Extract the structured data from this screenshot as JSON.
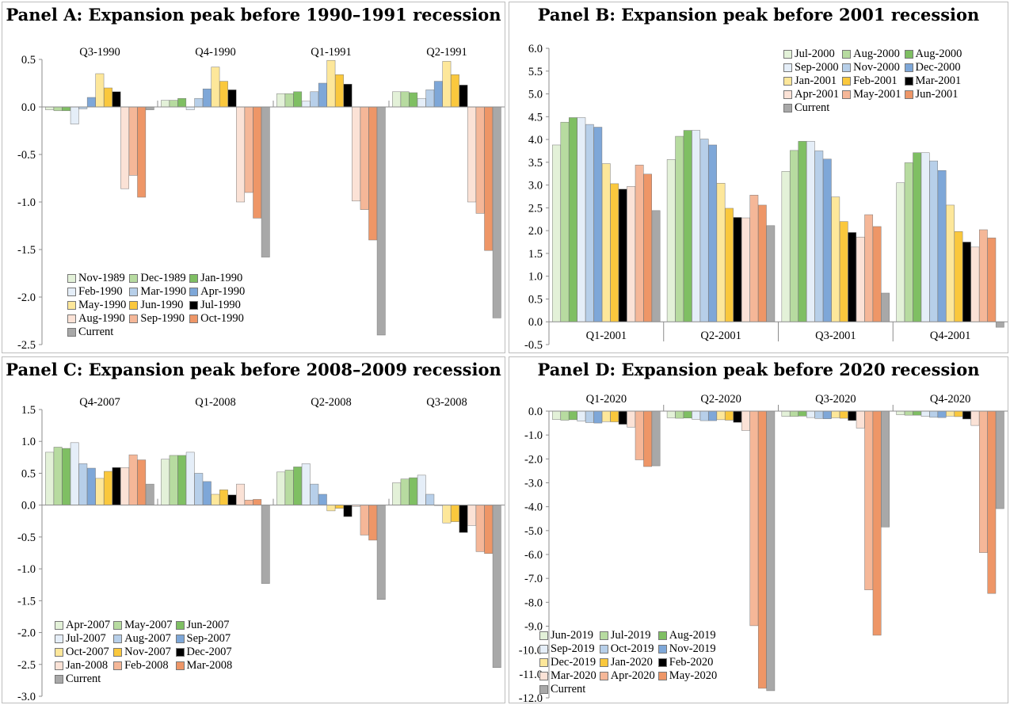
{
  "colors": {
    "pale_green": "#e3f1d8",
    "light_green": "#b7dba0",
    "green": "#7fbf63",
    "pale_blue": "#e5eef8",
    "light_blue": "#b7cfe9",
    "blue": "#7ea7d8",
    "light_yellow": "#fde79a",
    "yellow": "#fac83d",
    "black": "#000000",
    "pale_salmon": "#fbe2d6",
    "salmon": "#f5b798",
    "orange": "#ee9667",
    "gray": "#a8a8a8"
  },
  "chart_data": [
    {
      "type": "bar",
      "title": "Panel A: Expansion peak before 1990–1991 recession",
      "categories": [
        "Q3-1990",
        "Q4-1990",
        "Q1-1991",
        "Q2-1991"
      ],
      "category_position": "top",
      "ylim": [
        -2.5,
        0.5
      ],
      "ystep": 0.5,
      "ydecimals": 1,
      "grid": false,
      "legend_placement": "bottom-left",
      "legend_columns": 3,
      "series": [
        {
          "name": "Nov-1989",
          "color": "pale_green",
          "values": [
            -0.03,
            0.07,
            0.14,
            0.16
          ]
        },
        {
          "name": "Dec-1989",
          "color": "light_green",
          "values": [
            -0.04,
            0.07,
            0.14,
            0.16
          ]
        },
        {
          "name": "Jan-1990",
          "color": "green",
          "values": [
            -0.04,
            0.09,
            0.16,
            0.15
          ]
        },
        {
          "name": "Feb-1990",
          "color": "pale_blue",
          "values": [
            -0.18,
            -0.03,
            0.06,
            0.09
          ]
        },
        {
          "name": "Mar-1990",
          "color": "light_blue",
          "values": [
            -0.02,
            0.09,
            0.16,
            0.18
          ]
        },
        {
          "name": "Apr-1990",
          "color": "blue",
          "values": [
            0.1,
            0.19,
            0.25,
            0.27
          ]
        },
        {
          "name": "May-1990",
          "color": "light_yellow",
          "values": [
            0.35,
            0.42,
            0.49,
            0.48
          ]
        },
        {
          "name": "Jun-1990",
          "color": "yellow",
          "values": [
            0.2,
            0.27,
            0.34,
            0.34
          ]
        },
        {
          "name": "Jul-1990",
          "color": "black",
          "values": [
            0.16,
            0.18,
            0.24,
            0.23
          ]
        },
        {
          "name": "Aug-1990",
          "color": "pale_salmon",
          "values": [
            -0.86,
            -1.0,
            -0.99,
            -1.0
          ]
        },
        {
          "name": "Sep-1990",
          "color": "salmon",
          "values": [
            -0.72,
            -0.9,
            -1.08,
            -1.12
          ]
        },
        {
          "name": "Oct-1990",
          "color": "orange",
          "values": [
            -0.95,
            -1.17,
            -1.4,
            -1.51
          ]
        },
        {
          "name": "Current",
          "color": "gray",
          "values": [
            -0.03,
            -1.58,
            -2.4,
            -2.22
          ]
        }
      ]
    },
    {
      "type": "bar",
      "title": "Panel B: Expansion peak before 2001 recession",
      "categories": [
        "Q1-2001",
        "Q2-2001",
        "Q3-2001",
        "Q4-2001"
      ],
      "category_position": "bottom",
      "ylim": [
        -0.5,
        6.0
      ],
      "ystep": 0.5,
      "ydecimals": 1,
      "grid": false,
      "legend_placement": "top-right",
      "legend_columns": 3,
      "series": [
        {
          "name": "Jul-2000",
          "color": "pale_green",
          "values": [
            3.88,
            3.56,
            3.3,
            3.05
          ]
        },
        {
          "name": "Aug-2000",
          "color": "light_green",
          "values": [
            4.38,
            4.07,
            3.76,
            3.49
          ]
        },
        {
          "name": "Aug-2000",
          "color": "green",
          "values": [
            4.48,
            4.2,
            3.96,
            3.71
          ]
        },
        {
          "name": "Sep-2000",
          "color": "pale_blue",
          "values": [
            4.48,
            4.2,
            3.96,
            3.71
          ]
        },
        {
          "name": "Nov-2000",
          "color": "light_blue",
          "values": [
            4.33,
            4.01,
            3.75,
            3.53
          ]
        },
        {
          "name": "Dec-2000",
          "color": "blue",
          "values": [
            4.27,
            3.88,
            3.57,
            3.32
          ]
        },
        {
          "name": "Jan-2001",
          "color": "light_yellow",
          "values": [
            3.47,
            3.04,
            2.74,
            2.56
          ]
        },
        {
          "name": "Feb-2001",
          "color": "yellow",
          "values": [
            3.03,
            2.49,
            2.2,
            1.98
          ]
        },
        {
          "name": "Mar-2001",
          "color": "black",
          "values": [
            2.91,
            2.29,
            1.96,
            1.75
          ]
        },
        {
          "name": "Apr-2001",
          "color": "pale_salmon",
          "values": [
            2.97,
            2.28,
            1.86,
            1.64
          ]
        },
        {
          "name": "May-2001",
          "color": "salmon",
          "values": [
            3.44,
            2.78,
            2.35,
            2.02
          ]
        },
        {
          "name": "Jun-2001",
          "color": "orange",
          "values": [
            3.24,
            2.56,
            2.09,
            1.84
          ]
        },
        {
          "name": "Current",
          "color": "gray",
          "values": [
            2.44,
            2.11,
            0.63,
            -0.12
          ]
        }
      ]
    },
    {
      "type": "bar",
      "title": "Panel C: Expansion peak before 2008–2009 recession",
      "categories": [
        "Q4-2007",
        "Q1-2008",
        "Q2-2008",
        "Q3-2008"
      ],
      "category_position": "top",
      "ylim": [
        -3.0,
        1.5
      ],
      "ystep": 0.5,
      "ydecimals": 1,
      "grid": false,
      "legend_placement": "bottom-left",
      "legend_columns": 3,
      "series": [
        {
          "name": "Apr-2007",
          "color": "pale_green",
          "values": [
            0.83,
            0.72,
            0.52,
            0.35
          ]
        },
        {
          "name": "May-2007",
          "color": "light_green",
          "values": [
            0.91,
            0.78,
            0.55,
            0.41
          ]
        },
        {
          "name": "Jun-2007",
          "color": "green",
          "values": [
            0.89,
            0.78,
            0.6,
            0.43
          ]
        },
        {
          "name": "Jul-2007",
          "color": "pale_blue",
          "values": [
            0.98,
            0.83,
            0.65,
            0.47
          ]
        },
        {
          "name": "Aug-2007",
          "color": "light_blue",
          "values": [
            0.65,
            0.5,
            0.33,
            0.17
          ]
        },
        {
          "name": "Sep-2007",
          "color": "blue",
          "values": [
            0.58,
            0.37,
            0.17,
            0.0
          ]
        },
        {
          "name": "Oct-2007",
          "color": "light_yellow",
          "values": [
            0.42,
            0.17,
            -0.09,
            -0.28
          ]
        },
        {
          "name": "Nov-2007",
          "color": "yellow",
          "values": [
            0.53,
            0.24,
            -0.05,
            -0.26
          ]
        },
        {
          "name": "Dec-2007",
          "color": "black",
          "values": [
            0.59,
            0.16,
            -0.18,
            -0.43
          ]
        },
        {
          "name": "Jan-2008",
          "color": "pale_salmon",
          "values": [
            0.59,
            0.33,
            -0.02,
            -0.32
          ]
        },
        {
          "name": "Feb-2008",
          "color": "salmon",
          "values": [
            0.79,
            0.08,
            -0.47,
            -0.73
          ]
        },
        {
          "name": "Mar-2008",
          "color": "orange",
          "values": [
            0.71,
            0.09,
            -0.55,
            -0.76
          ]
        },
        {
          "name": "Current",
          "color": "gray",
          "values": [
            0.33,
            -1.23,
            -1.48,
            -2.55
          ]
        }
      ]
    },
    {
      "type": "bar",
      "title": "Panel D: Expansion peak before 2020 recession",
      "categories": [
        "Q1-2020",
        "Q2-2020",
        "Q3-2020",
        "Q4-2020"
      ],
      "category_position": "top",
      "ylim": [
        -12.0,
        0.0
      ],
      "ystep": 1.0,
      "ydecimals": 1,
      "grid": false,
      "legend_placement": "bottom-left",
      "legend_columns": 3,
      "series": [
        {
          "name": "Jun-2019",
          "color": "pale_green",
          "values": [
            -0.35,
            -0.28,
            -0.22,
            -0.15
          ]
        },
        {
          "name": "Jul-2019",
          "color": "light_green",
          "values": [
            -0.38,
            -0.3,
            -0.22,
            -0.17
          ]
        },
        {
          "name": "Aug-2019",
          "color": "green",
          "values": [
            -0.36,
            -0.29,
            -0.21,
            -0.17
          ]
        },
        {
          "name": "Sep-2019",
          "color": "pale_blue",
          "values": [
            -0.42,
            -0.34,
            -0.27,
            -0.22
          ]
        },
        {
          "name": "Oct-2019",
          "color": "light_blue",
          "values": [
            -0.48,
            -0.4,
            -0.31,
            -0.26
          ]
        },
        {
          "name": "Nov-2019",
          "color": "blue",
          "values": [
            -0.5,
            -0.4,
            -0.32,
            -0.27
          ]
        },
        {
          "name": "Dec-2019",
          "color": "light_yellow",
          "values": [
            -0.44,
            -0.36,
            -0.28,
            -0.21
          ]
        },
        {
          "name": "Jan-2020",
          "color": "yellow",
          "values": [
            -0.45,
            -0.38,
            -0.3,
            -0.23
          ]
        },
        {
          "name": "Feb-2020",
          "color": "black",
          "values": [
            -0.55,
            -0.47,
            -0.39,
            -0.33
          ]
        },
        {
          "name": "Mar-2020",
          "color": "pale_salmon",
          "values": [
            -0.67,
            -0.81,
            -0.71,
            -0.6
          ]
        },
        {
          "name": "Apr-2020",
          "color": "salmon",
          "values": [
            -2.04,
            -8.98,
            -7.48,
            -5.92
          ]
        },
        {
          "name": "May-2020",
          "color": "orange",
          "values": [
            -2.32,
            -11.6,
            -9.38,
            -7.63
          ]
        },
        {
          "name": "Current",
          "color": "gray",
          "values": [
            -2.29,
            -11.7,
            -4.85,
            -4.08
          ]
        }
      ]
    }
  ]
}
